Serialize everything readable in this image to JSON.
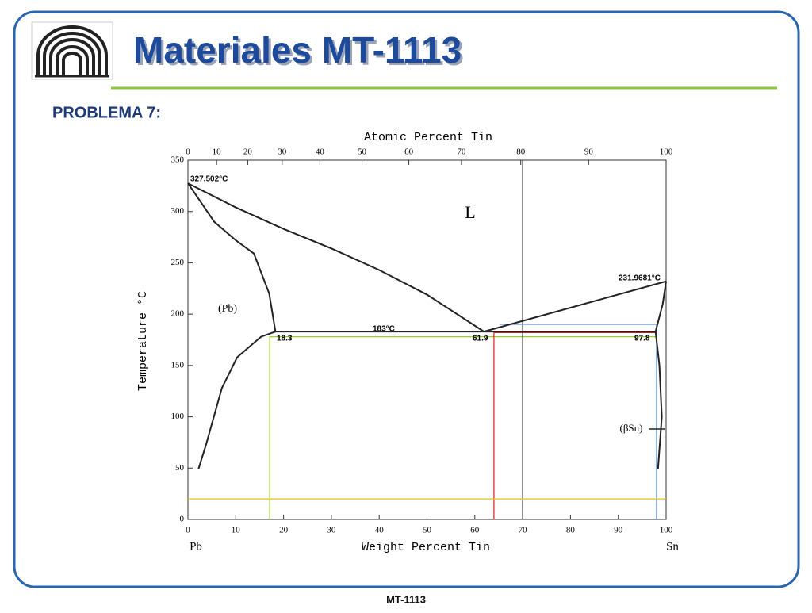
{
  "header": {
    "title": "Materiales MT-1113",
    "subtitle": "PROBLEMA 7:"
  },
  "footer": "MT-1113",
  "chart_data": {
    "type": "phase-diagram",
    "xlabel": "Weight Percent Tin",
    "x2label": "Atomic Percent Tin",
    "ylabel": "Temperature °C",
    "end_labels": [
      "Pb",
      "Sn"
    ],
    "xlim": [
      0,
      100
    ],
    "ylim": [
      0,
      350
    ],
    "xticks": [
      0,
      10,
      20,
      30,
      40,
      50,
      60,
      70,
      80,
      90,
      100
    ],
    "yticks": [
      0,
      50,
      100,
      150,
      200,
      250,
      300,
      350
    ],
    "x2ticks": [
      0,
      {
        "value": 6.0,
        "label": "10"
      },
      {
        "value": 12.5,
        "label": "20"
      },
      {
        "value": 19.7,
        "label": "30"
      },
      {
        "value": 27.6,
        "label": "40"
      },
      {
        "value": 36.4,
        "label": "50"
      },
      {
        "value": 46.2,
        "label": "60"
      },
      {
        "value": 57.2,
        "label": "70"
      },
      {
        "value": 69.6,
        "label": "80"
      },
      {
        "value": 83.8,
        "label": "90"
      },
      100
    ],
    "annotations": [
      "327.502°C",
      "231.9681°C",
      "183°C",
      "18.3",
      "61.9",
      "97.8",
      "(Pb)",
      "L",
      "(βSn)"
    ],
    "boundary_color": "#222222",
    "boundaries": [
      {
        "x": [
          0,
          10,
          20,
          30,
          40,
          50,
          61.9
        ],
        "values": [
          327.5,
          304,
          283,
          264,
          243,
          219,
          183
        ]
      },
      {
        "x": [
          0,
          5.5,
          10,
          13.8,
          17,
          18.3
        ],
        "values": [
          327.5,
          290,
          272,
          259,
          220,
          183
        ]
      },
      {
        "x": [
          18.3,
          15.3,
          10.3,
          7.1,
          3.8,
          2.2
        ],
        "values": [
          183,
          178,
          158,
          128,
          73,
          49
        ]
      },
      {
        "x": [
          18.3,
          97.8
        ],
        "values": [
          183,
          183
        ]
      },
      {
        "x": [
          61.9,
          100
        ],
        "values": [
          183,
          232
        ]
      },
      {
        "x": [
          97.8,
          99.3,
          100
        ],
        "values": [
          183,
          210,
          232
        ]
      },
      {
        "x": [
          97.8,
          98.6,
          99.1,
          98.3
        ],
        "values": [
          183,
          150,
          100,
          49
        ]
      }
    ],
    "guides": [
      {
        "color": "#9acd32",
        "x": [
          17.1,
          17.1,
          98
        ],
        "values": [
          0,
          178,
          178
        ]
      },
      {
        "color": "#d42020",
        "x": [
          64,
          64,
          98
        ],
        "values": [
          0,
          182,
          182
        ]
      },
      {
        "color": "#222222",
        "x": [
          70,
          70
        ],
        "values": [
          0,
          350
        ]
      },
      {
        "color": "#5b8fd6",
        "x": [
          65.2,
          98,
          98
        ],
        "values": [
          190,
          190,
          0
        ]
      },
      {
        "color": "#e0c21a",
        "x": [
          0,
          100
        ],
        "values": [
          20,
          20
        ]
      }
    ]
  }
}
